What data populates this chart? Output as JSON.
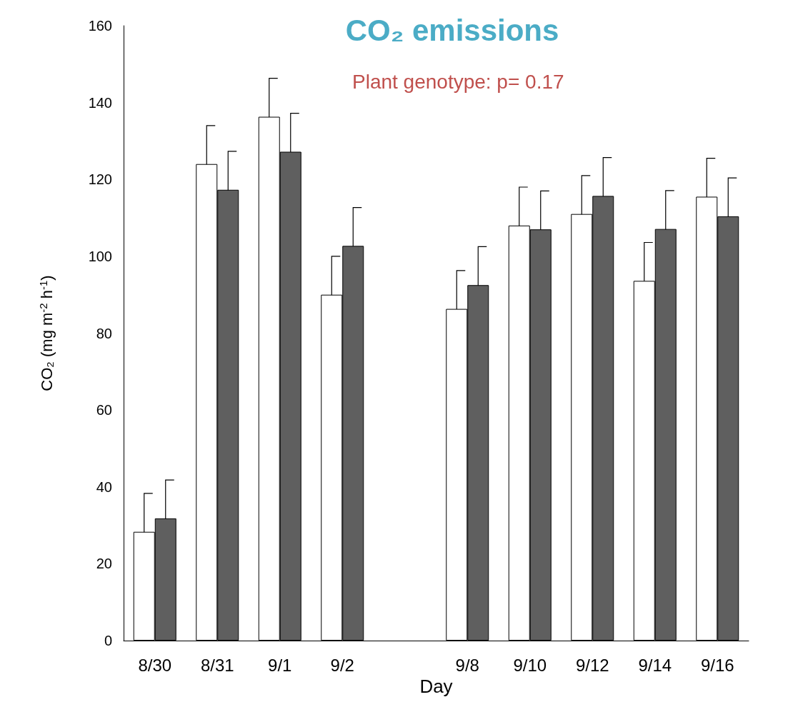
{
  "chart_data": {
    "type": "bar",
    "title": "CO₂ emissions",
    "annotations": [
      "Plant genotype: p= 0.17"
    ],
    "xlabel": "Day",
    "ylabel": "CO₂ (mg m$^{-2}$ h$^{-1}$)",
    "categories": [
      "8/30",
      "8/31",
      "9/1",
      "9/2",
      null,
      "9/8",
      "9/10",
      "9/12",
      "9/14",
      "9/16"
    ],
    "series": [
      {
        "color": "#ffffff",
        "values": [
          28.3,
          124,
          136.3,
          90,
          null,
          86.3,
          108,
          111,
          93.6,
          115.5
        ],
        "errors": [
          10,
          10,
          10,
          10,
          null,
          10,
          10,
          10,
          10,
          10
        ]
      },
      {
        "color": "#5f5f5f",
        "values": [
          31.8,
          117.3,
          127.2,
          102.7,
          null,
          92.5,
          107,
          115.7,
          107.1,
          110.4
        ],
        "errors": [
          10,
          10,
          10,
          10,
          null,
          10,
          10,
          10,
          10,
          10
        ]
      }
    ],
    "ylim": [
      0,
      160
    ],
    "yticks": [
      0,
      20,
      40,
      60,
      80,
      100,
      120,
      140,
      160
    ],
    "grid": false
  }
}
